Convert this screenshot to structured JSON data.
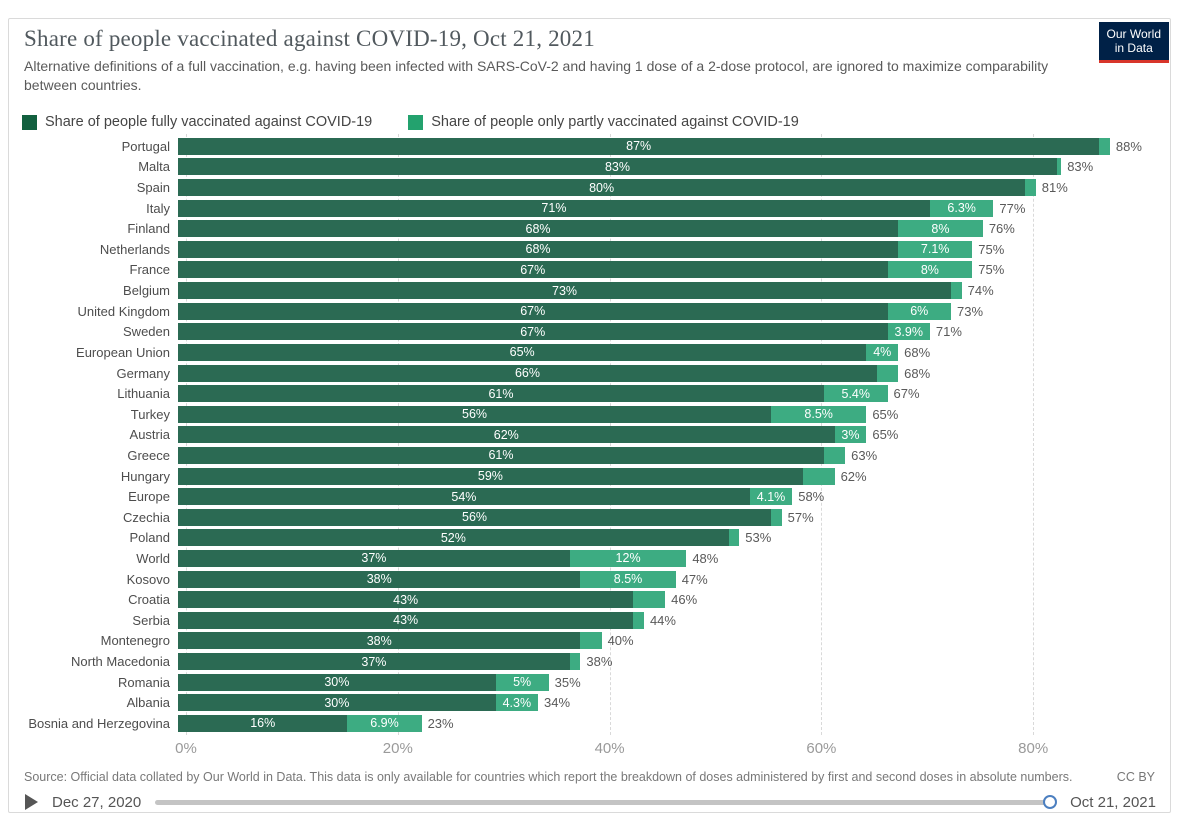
{
  "header": {
    "title": "Share of people vaccinated against COVID-19, Oct 21, 2021",
    "subtitle": "Alternative definitions of a full vaccination, e.g. having been infected with SARS-CoV-2 and having 1 dose of a 2-dose protocol, are ignored to maximize comparability between countries.",
    "logo_line1": "Our World",
    "logo_line2": "in Data"
  },
  "legend": {
    "fully_label": "Share of people fully vaccinated against COVID-19",
    "partly_label": "Share of people only partly vaccinated against COVID-19"
  },
  "colors": {
    "fully": "#2b6a53",
    "partly": "#3dac82",
    "legend_fully": "#12603f",
    "legend_partly": "#23a26e",
    "logo_bg": "#002147",
    "logo_red": "#d8352a",
    "timeline_handle_ring": "#4c7fc0"
  },
  "footer": {
    "source": "Source: Official data collated by Our World in Data. This data is only available for countries which report the breakdown of doses administered by first and second doses in absolute numbers.",
    "license": "CC BY"
  },
  "timeline": {
    "start": "Dec 27, 2020",
    "end": "Oct 21, 2021"
  },
  "chart_data": {
    "type": "bar",
    "orientation": "horizontal",
    "stacked": true,
    "grid": true,
    "xlim": [
      0,
      90
    ],
    "x_ticks": [
      {
        "value": 0,
        "label": "0%"
      },
      {
        "value": 20,
        "label": "20%"
      },
      {
        "value": 40,
        "label": "40%"
      },
      {
        "value": 60,
        "label": "60%"
      },
      {
        "value": 80,
        "label": "80%"
      }
    ],
    "series_names": [
      "Share of people fully vaccinated against COVID-19",
      "Share of people only partly vaccinated against COVID-19"
    ],
    "rows": [
      {
        "country": "Portugal",
        "fully": 87,
        "partly": 1,
        "total": 88,
        "fully_label": "87%",
        "partly_label": "",
        "total_label": "88%"
      },
      {
        "country": "Malta",
        "fully": 83,
        "partly": 0.4,
        "total": 83.4,
        "fully_label": "83%",
        "partly_label": "",
        "total_label": "83%"
      },
      {
        "country": "Spain",
        "fully": 80,
        "partly": 1,
        "total": 81,
        "fully_label": "80%",
        "partly_label": "",
        "total_label": "81%"
      },
      {
        "country": "Italy",
        "fully": 71,
        "partly": 6.3,
        "total": 77,
        "fully_label": "71%",
        "partly_label": "6.3%",
        "total_label": "77%"
      },
      {
        "country": "Finland",
        "fully": 68,
        "partly": 8,
        "total": 76,
        "fully_label": "68%",
        "partly_label": "8%",
        "total_label": "76%"
      },
      {
        "country": "Netherlands",
        "fully": 68,
        "partly": 7.1,
        "total": 75,
        "fully_label": "68%",
        "partly_label": "7.1%",
        "total_label": "75%"
      },
      {
        "country": "France",
        "fully": 67,
        "partly": 8,
        "total": 75,
        "fully_label": "67%",
        "partly_label": "8%",
        "total_label": "75%"
      },
      {
        "country": "Belgium",
        "fully": 73,
        "partly": 1,
        "total": 74,
        "fully_label": "73%",
        "partly_label": "",
        "total_label": "74%"
      },
      {
        "country": "United Kingdom",
        "fully": 67,
        "partly": 6,
        "total": 73,
        "fully_label": "67%",
        "partly_label": "6%",
        "total_label": "73%"
      },
      {
        "country": "Sweden",
        "fully": 67,
        "partly": 3.9,
        "total": 71,
        "fully_label": "67%",
        "partly_label": "3.9%",
        "total_label": "71%"
      },
      {
        "country": "European Union",
        "fully": 65,
        "partly": 4,
        "total": 68,
        "fully_label": "65%",
        "partly_label": "4%",
        "total_label": "68%"
      },
      {
        "country": "Germany",
        "fully": 66,
        "partly": 2,
        "total": 68,
        "fully_label": "66%",
        "partly_label": "",
        "total_label": "68%"
      },
      {
        "country": "Lithuania",
        "fully": 61,
        "partly": 5.4,
        "total": 67,
        "fully_label": "61%",
        "partly_label": "5.4%",
        "total_label": "67%"
      },
      {
        "country": "Turkey",
        "fully": 56,
        "partly": 8.5,
        "total": 65,
        "fully_label": "56%",
        "partly_label": "8.5%",
        "total_label": "65%"
      },
      {
        "country": "Austria",
        "fully": 62,
        "partly": 3,
        "total": 65,
        "fully_label": "62%",
        "partly_label": "3%",
        "total_label": "65%"
      },
      {
        "country": "Greece",
        "fully": 61,
        "partly": 2,
        "total": 63,
        "fully_label": "61%",
        "partly_label": "",
        "total_label": "63%"
      },
      {
        "country": "Hungary",
        "fully": 59,
        "partly": 3,
        "total": 62,
        "fully_label": "59%",
        "partly_label": "",
        "total_label": "62%"
      },
      {
        "country": "Europe",
        "fully": 54,
        "partly": 4.1,
        "total": 58,
        "fully_label": "54%",
        "partly_label": "4.1%",
        "total_label": "58%"
      },
      {
        "country": "Czechia",
        "fully": 56,
        "partly": 1,
        "total": 57,
        "fully_label": "56%",
        "partly_label": "",
        "total_label": "57%"
      },
      {
        "country": "Poland",
        "fully": 52,
        "partly": 1,
        "total": 53,
        "fully_label": "52%",
        "partly_label": "",
        "total_label": "53%"
      },
      {
        "country": "World",
        "fully": 37,
        "partly": 12,
        "total": 48,
        "fully_label": "37%",
        "partly_label": "12%",
        "total_label": "48%"
      },
      {
        "country": "Kosovo",
        "fully": 38,
        "partly": 8.5,
        "total": 47,
        "fully_label": "38%",
        "partly_label": "8.5%",
        "total_label": "47%"
      },
      {
        "country": "Croatia",
        "fully": 43,
        "partly": 3,
        "total": 46,
        "fully_label": "43%",
        "partly_label": "",
        "total_label": "46%"
      },
      {
        "country": "Serbia",
        "fully": 43,
        "partly": 1,
        "total": 44,
        "fully_label": "43%",
        "partly_label": "",
        "total_label": "44%"
      },
      {
        "country": "Montenegro",
        "fully": 38,
        "partly": 2,
        "total": 40,
        "fully_label": "38%",
        "partly_label": "",
        "total_label": "40%"
      },
      {
        "country": "North Macedonia",
        "fully": 37,
        "partly": 1,
        "total": 38,
        "fully_label": "37%",
        "partly_label": "",
        "total_label": "38%"
      },
      {
        "country": "Romania",
        "fully": 30,
        "partly": 5,
        "total": 35,
        "fully_label": "30%",
        "partly_label": "5%",
        "total_label": "35%"
      },
      {
        "country": "Albania",
        "fully": 30,
        "partly": 4.3,
        "total": 34,
        "fully_label": "30%",
        "partly_label": "4.3%",
        "total_label": "34%"
      },
      {
        "country": "Bosnia and Herzegovina",
        "fully": 16,
        "partly": 6.9,
        "total": 23,
        "fully_label": "16%",
        "partly_label": "6.9%",
        "total_label": "23%"
      }
    ]
  }
}
